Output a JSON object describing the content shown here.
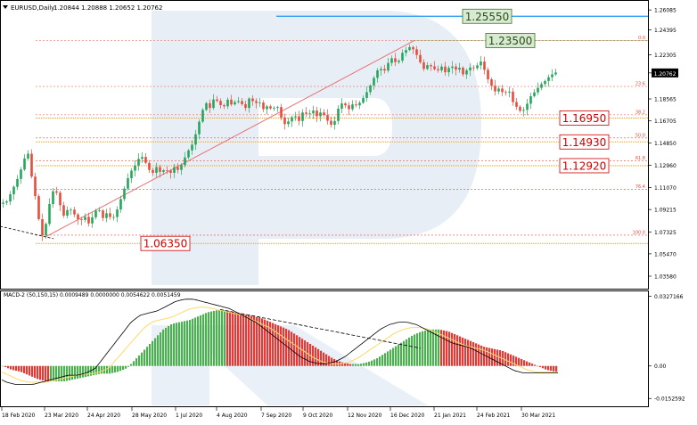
{
  "header": {
    "title": "EURUSD,Daily",
    "ohlc": "1.20844 1.20888 1.20652 1.20762"
  },
  "indicator": {
    "label": "MACD-2 (50,150,15) 0.0009489 0.0000000 0.0054622 0.0051459"
  },
  "chart_data": {
    "type": "candlestick",
    "title": "EURUSD,Daily",
    "x_ticks": [
      "18 Feb 2020",
      "23 Mar 2020",
      "24 Apr 2020",
      "28 May 2020",
      "1 Jul 2020",
      "4 Aug 2020",
      "7 Sep 2020",
      "9 Oct 2020",
      "12 Nov 2020",
      "16 Dec 2020",
      "21 Jan 2021",
      "24 Feb 2021",
      "30 Mar 2021"
    ],
    "y_ticks": [
      "1.26085",
      "1.24395",
      "1.22305",
      "1.20762",
      "1.18565",
      "1.16705",
      "1.14850",
      "1.12960",
      "1.11070",
      "1.09215",
      "1.07325",
      "1.05470",
      "1.03580"
    ],
    "current_price": "1.20762",
    "price_levels": [
      {
        "label": "1.25550",
        "value": 1.2555,
        "color": "#2196f3",
        "box": "green"
      },
      {
        "label": "1.23500",
        "value": 1.235,
        "color": "#b7d7a8",
        "box": "green"
      },
      {
        "label": "1.16950",
        "value": 1.1695,
        "color": "#ff9900",
        "box": "red"
      },
      {
        "label": "1.14930",
        "value": 1.1493,
        "color": "#ff9900",
        "box": "red"
      },
      {
        "label": "1.12920",
        "value": 1.1292,
        "color": "#ff9900",
        "box": "red"
      },
      {
        "label": "1.06350",
        "value": 1.0635,
        "color": "#ff9900",
        "box": "red"
      }
    ],
    "fib_levels": [
      {
        "label": "0.0",
        "value": 1.235
      },
      {
        "label": "23.6",
        "value": 1.1962
      },
      {
        "label": "38.2",
        "value": 1.1722
      },
      {
        "label": "50.0",
        "value": 1.1527
      },
      {
        "label": "61.8",
        "value": 1.1333
      },
      {
        "label": "76.4",
        "value": 1.1093
      },
      {
        "label": "100.0",
        "value": 1.0705
      }
    ],
    "price_path": [
      [
        0,
        1.097
      ],
      [
        8,
        1.099
      ],
      [
        14,
        1.108
      ],
      [
        20,
        1.118
      ],
      [
        27,
        1.132
      ],
      [
        31,
        1.145
      ],
      [
        34,
        1.128
      ],
      [
        38,
        1.112
      ],
      [
        42,
        1.095
      ],
      [
        46,
        1.073
      ],
      [
        49,
        1.069
      ],
      [
        52,
        1.08
      ],
      [
        57,
        1.101
      ],
      [
        62,
        1.112
      ],
      [
        67,
        1.098
      ],
      [
        72,
        1.087
      ],
      [
        78,
        1.094
      ],
      [
        84,
        1.088
      ],
      [
        90,
        1.082
      ],
      [
        96,
        1.086
      ],
      [
        101,
        1.079
      ],
      [
        106,
        1.09
      ],
      [
        111,
        1.093
      ],
      [
        116,
        1.085
      ],
      [
        121,
        1.09
      ],
      [
        126,
        1.083
      ],
      [
        131,
        1.09
      ],
      [
        136,
        1.101
      ],
      [
        141,
        1.112
      ],
      [
        146,
        1.123
      ],
      [
        151,
        1.128
      ],
      [
        156,
        1.135
      ],
      [
        161,
        1.137
      ],
      [
        166,
        1.128
      ],
      [
        171,
        1.122
      ],
      [
        176,
        1.128
      ],
      [
        181,
        1.123
      ],
      [
        186,
        1.127
      ],
      [
        191,
        1.122
      ],
      [
        196,
        1.128
      ],
      [
        201,
        1.125
      ],
      [
        206,
        1.133
      ],
      [
        211,
        1.141
      ],
      [
        216,
        1.147
      ],
      [
        221,
        1.158
      ],
      [
        226,
        1.172
      ],
      [
        231,
        1.183
      ],
      [
        236,
        1.178
      ],
      [
        241,
        1.187
      ],
      [
        246,
        1.182
      ],
      [
        251,
        1.178
      ],
      [
        256,
        1.185
      ],
      [
        261,
        1.18
      ],
      [
        266,
        1.185
      ],
      [
        271,
        1.182
      ],
      [
        276,
        1.178
      ],
      [
        281,
        1.188
      ],
      [
        286,
        1.181
      ],
      [
        291,
        1.184
      ],
      [
        296,
        1.177
      ],
      [
        301,
        1.18
      ],
      [
        306,
        1.176
      ],
      [
        311,
        1.181
      ],
      [
        316,
        1.17
      ],
      [
        321,
        1.163
      ],
      [
        326,
        1.169
      ],
      [
        331,
        1.172
      ],
      [
        336,
        1.167
      ],
      [
        341,
        1.176
      ],
      [
        346,
        1.171
      ],
      [
        351,
        1.177
      ],
      [
        356,
        1.171
      ],
      [
        361,
        1.175
      ],
      [
        366,
        1.17
      ],
      [
        371,
        1.163
      ],
      [
        376,
        1.167
      ],
      [
        381,
        1.18
      ],
      [
        386,
        1.183
      ],
      [
        391,
        1.176
      ],
      [
        396,
        1.181
      ],
      [
        401,
        1.18
      ],
      [
        406,
        1.184
      ],
      [
        411,
        1.19
      ],
      [
        416,
        1.197
      ],
      [
        421,
        1.205
      ],
      [
        426,
        1.213
      ],
      [
        431,
        1.208
      ],
      [
        436,
        1.216
      ],
      [
        441,
        1.221
      ],
      [
        446,
        1.214
      ],
      [
        451,
        1.224
      ],
      [
        456,
        1.227
      ],
      [
        461,
        1.23
      ],
      [
        466,
        1.226
      ],
      [
        471,
        1.218
      ],
      [
        476,
        1.211
      ],
      [
        481,
        1.215
      ],
      [
        486,
        1.212
      ],
      [
        491,
        1.209
      ],
      [
        496,
        1.213
      ],
      [
        501,
        1.207
      ],
      [
        506,
        1.215
      ],
      [
        511,
        1.21
      ],
      [
        516,
        1.212
      ],
      [
        521,
        1.205
      ],
      [
        526,
        1.213
      ],
      [
        531,
        1.211
      ],
      [
        536,
        1.214
      ],
      [
        541,
        1.218
      ],
      [
        546,
        1.205
      ],
      [
        551,
        1.198
      ],
      [
        556,
        1.192
      ],
      [
        561,
        1.195
      ],
      [
        566,
        1.189
      ],
      [
        571,
        1.194
      ],
      [
        576,
        1.183
      ],
      [
        581,
        1.178
      ],
      [
        586,
        1.174
      ],
      [
        591,
        1.18
      ],
      [
        596,
        1.188
      ],
      [
        601,
        1.192
      ],
      [
        606,
        1.197
      ],
      [
        611,
        1.2
      ],
      [
        616,
        1.204
      ],
      [
        621,
        1.207
      ],
      [
        624,
        1.208
      ]
    ],
    "macd_path": [
      [
        0,
        0
      ],
      [
        5,
        -0.001
      ],
      [
        10,
        -0.002
      ],
      [
        20,
        -0.003
      ],
      [
        30,
        -0.005
      ],
      [
        40,
        -0.007
      ],
      [
        50,
        -0.008
      ],
      [
        60,
        -0.008
      ],
      [
        70,
        -0.008
      ],
      [
        80,
        -0.007
      ],
      [
        90,
        -0.006
      ],
      [
        100,
        -0.005
      ],
      [
        110,
        -0.004
      ],
      [
        120,
        -0.004
      ],
      [
        130,
        -0.003
      ],
      [
        140,
        -0.001
      ],
      [
        150,
        0.004
      ],
      [
        160,
        0.009
      ],
      [
        170,
        0.014
      ],
      [
        180,
        0.019
      ],
      [
        190,
        0.022
      ],
      [
        200,
        0.023
      ],
      [
        210,
        0.024
      ],
      [
        220,
        0.026
      ],
      [
        230,
        0.028
      ],
      [
        240,
        0.029
      ],
      [
        250,
        0.029
      ],
      [
        260,
        0.028
      ],
      [
        270,
        0.027
      ],
      [
        280,
        0.026
      ],
      [
        290,
        0.025
      ],
      [
        300,
        0.023
      ],
      [
        310,
        0.021
      ],
      [
        320,
        0.019
      ],
      [
        330,
        0.016
      ],
      [
        340,
        0.013
      ],
      [
        350,
        0.01
      ],
      [
        360,
        0.007
      ],
      [
        370,
        0.004
      ],
      [
        380,
        0.002
      ],
      [
        390,
        0.001
      ],
      [
        400,
        0.001
      ],
      [
        410,
        0.002
      ],
      [
        420,
        0.004
      ],
      [
        430,
        0.007
      ],
      [
        440,
        0.01
      ],
      [
        450,
        0.013
      ],
      [
        460,
        0.016
      ],
      [
        470,
        0.018
      ],
      [
        480,
        0.019
      ],
      [
        490,
        0.019
      ],
      [
        500,
        0.018
      ],
      [
        510,
        0.016
      ],
      [
        520,
        0.014
      ],
      [
        530,
        0.012
      ],
      [
        540,
        0.01
      ],
      [
        550,
        0.009
      ],
      [
        560,
        0.008
      ],
      [
        570,
        0.006
      ],
      [
        580,
        0.004
      ],
      [
        590,
        0.002
      ],
      [
        600,
        0.0
      ],
      [
        610,
        -0.002
      ],
      [
        620,
        -0.003
      ],
      [
        624,
        -0.003
      ]
    ],
    "macd_series": {
      "signal": "#ffd966",
      "main": "#000000",
      "hist_up": "#4caf50",
      "hist_down": "#e53935"
    },
    "macd_y_ticks": [
      "0.0327166",
      "0.00",
      "-0.0152592"
    ],
    "colors": {
      "bull": "#26a65b",
      "bear": "#e74c3c",
      "fib": "#e74c3c",
      "trend": "#e57373",
      "watermark": "#e8eef6"
    }
  }
}
